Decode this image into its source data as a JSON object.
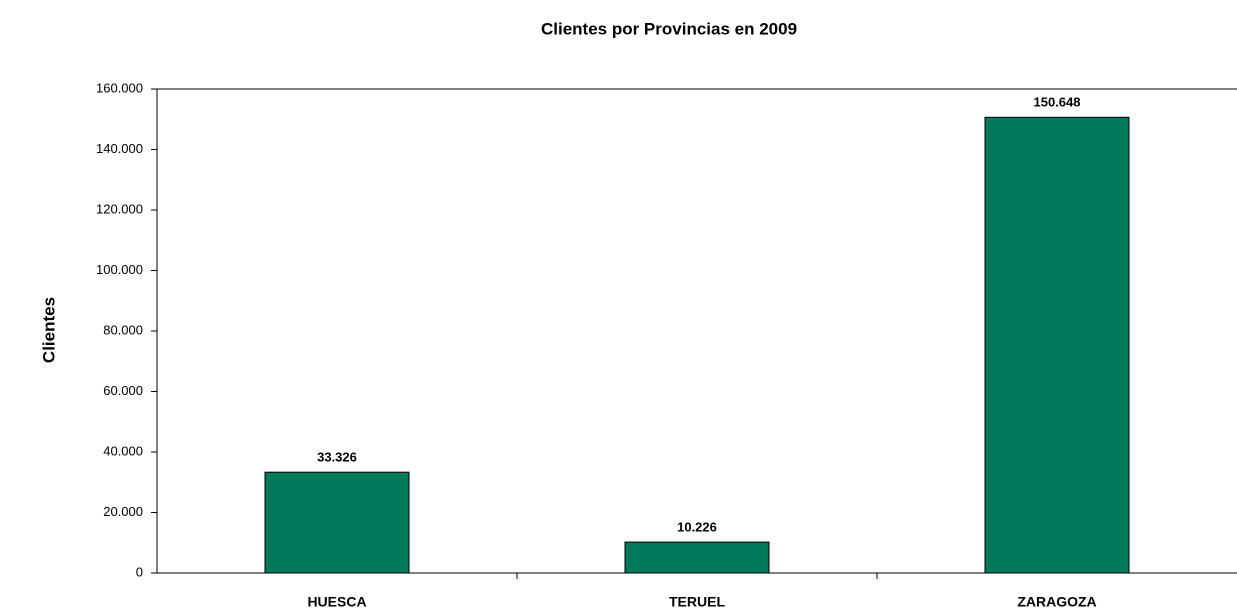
{
  "chart_data": {
    "type": "bar",
    "title": "Clientes por Provincias en 2009",
    "y_label": "Clientes",
    "categories": [
      "HUESCA",
      "TERUEL",
      "ZARAGOZA"
    ],
    "values": [
      33326,
      10226,
      150648
    ],
    "value_labels": [
      "33.326",
      "10.226",
      "150.648"
    ],
    "color": "#007a5a",
    "ylim": [
      0,
      160000
    ],
    "yticks": [
      0,
      {
        "value": 20000,
        "label": "20.000"
      },
      {
        "value": 40000,
        "label": "40.000"
      },
      {
        "value": 60000,
        "label": "60.000"
      },
      {
        "value": 80000,
        "label": "80.000"
      },
      {
        "value": 100000,
        "label": "100.000"
      },
      {
        "value": 120000,
        "label": "120.000"
      },
      {
        "value": 140000,
        "label": "140.000"
      },
      {
        "value": 160000,
        "label": "160.000"
      }
    ],
    "grid": false
  }
}
